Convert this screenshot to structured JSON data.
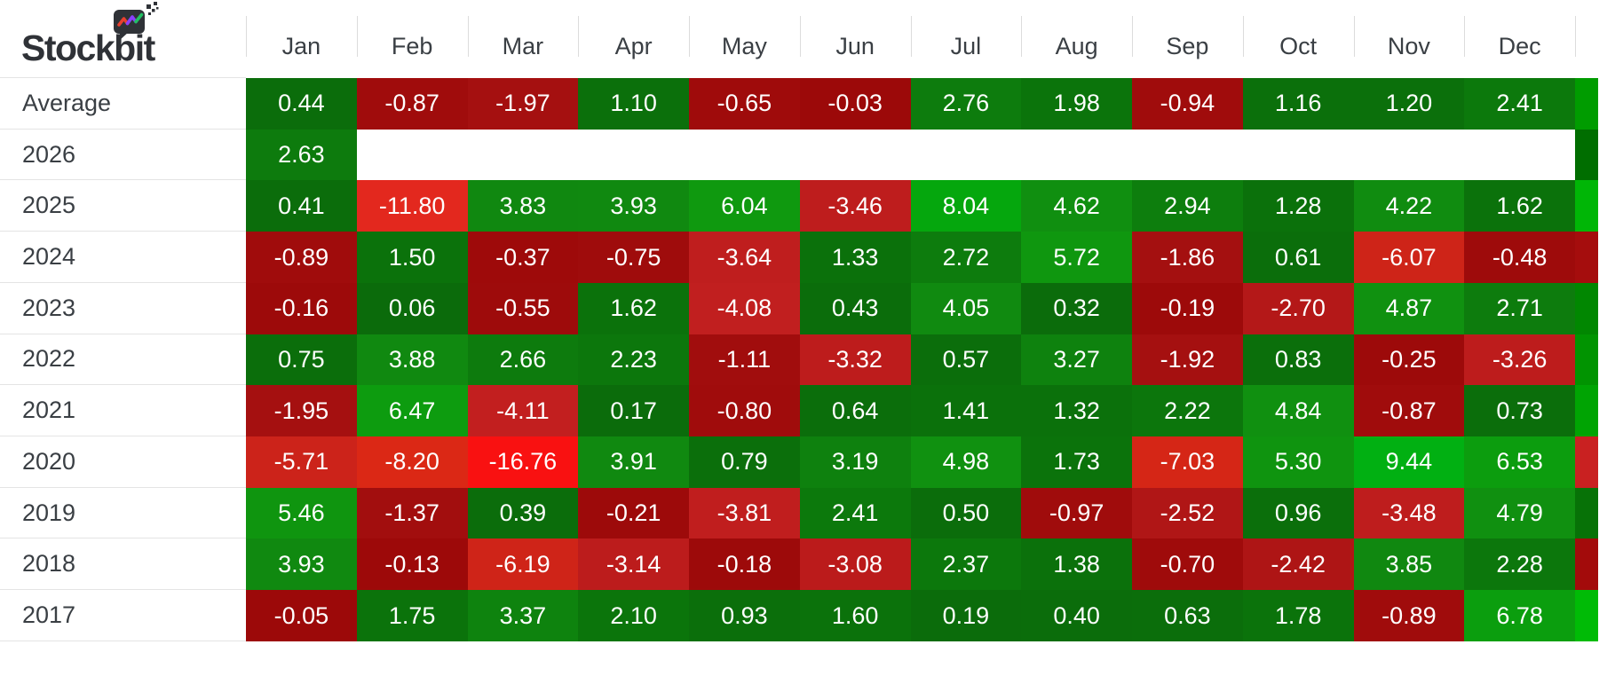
{
  "app": {
    "logo_text": "Stockbit"
  },
  "colors": {
    "background": "#FFFFFF",
    "header_text": "#3A3F44",
    "row_label_text": "#3A3F44",
    "cell_text": "#FFFFFF",
    "divider": "#DCDCDC",
    "row_border": "#E4E4E4",
    "logo_text": "#2F3237",
    "logo_zigzag_red": "#E8402F",
    "logo_zigzag_purple": "#8A3FFC",
    "logo_zigzag_green": "#21C063"
  },
  "chart_data": {
    "type": "heatmap",
    "title": "",
    "x_categories": [
      "Jan",
      "Feb",
      "Mar",
      "Apr",
      "May",
      "Jun",
      "Jul",
      "Aug",
      "Sep",
      "Oct",
      "Nov",
      "Dec"
    ],
    "y_categories": [
      "Average",
      "2026",
      "2025",
      "2024",
      "2023",
      "2022",
      "2021",
      "2020",
      "2019",
      "2018",
      "2017"
    ],
    "values": [
      [
        0.44,
        -0.87,
        -1.97,
        1.1,
        -0.65,
        -0.03,
        2.76,
        1.98,
        -0.94,
        1.16,
        1.2,
        2.41
      ],
      [
        2.63,
        null,
        null,
        null,
        null,
        null,
        null,
        null,
        null,
        null,
        null,
        null
      ],
      [
        0.41,
        -11.8,
        3.83,
        3.93,
        6.04,
        -3.46,
        8.04,
        4.62,
        2.94,
        1.28,
        4.22,
        1.62
      ],
      [
        -0.89,
        1.5,
        -0.37,
        -0.75,
        -3.64,
        1.33,
        2.72,
        5.72,
        -1.86,
        0.61,
        -6.07,
        -0.48
      ],
      [
        -0.16,
        0.06,
        -0.55,
        1.62,
        -4.08,
        0.43,
        4.05,
        0.32,
        -0.19,
        -2.7,
        4.87,
        2.71
      ],
      [
        0.75,
        3.88,
        2.66,
        2.23,
        -1.11,
        -3.32,
        0.57,
        3.27,
        -1.92,
        0.83,
        -0.25,
        -3.26
      ],
      [
        -1.95,
        6.47,
        -4.11,
        0.17,
        -0.8,
        0.64,
        1.41,
        1.32,
        2.22,
        4.84,
        -0.87,
        0.73
      ],
      [
        -5.71,
        -8.2,
        -16.76,
        3.91,
        0.79,
        3.19,
        4.98,
        1.73,
        -7.03,
        5.3,
        9.44,
        6.53
      ],
      [
        5.46,
        -1.37,
        0.39,
        -0.21,
        -3.81,
        2.41,
        0.5,
        -0.97,
        -2.52,
        0.96,
        -3.48,
        4.79
      ],
      [
        3.93,
        -0.13,
        -6.19,
        -3.14,
        -0.18,
        -3.08,
        2.37,
        1.38,
        -0.7,
        -2.42,
        3.85,
        2.28
      ],
      [
        -0.05,
        1.75,
        3.37,
        2.1,
        0.93,
        1.6,
        0.19,
        0.4,
        0.63,
        1.78,
        -0.89,
        6.78
      ]
    ],
    "value_decimals": 2,
    "grid": false,
    "legend": "none",
    "color_scale": {
      "positive_stops": [
        [
          0,
          "#0B6B0B"
        ],
        [
          2,
          "#0B740B"
        ],
        [
          4,
          "#108A10"
        ],
        [
          6,
          "#0F990F"
        ],
        [
          8,
          "#05A70D"
        ],
        [
          10,
          "#00B414"
        ]
      ],
      "negative_stops": [
        [
          0,
          "#9C0909"
        ],
        [
          2,
          "#A51010"
        ],
        [
          3,
          "#BB1B1B"
        ],
        [
          4.5,
          "#C42121"
        ],
        [
          6,
          "#CE2418"
        ],
        [
          8,
          "#DB2814"
        ],
        [
          12,
          "#E3281E"
        ],
        [
          17,
          "#FA1010"
        ]
      ]
    },
    "partial_next_column_colors": [
      "#009C00",
      "#006E00",
      "#00B606",
      "#A50D0D",
      "#018701",
      "#019401",
      "#00A403",
      "#C92121",
      "#077207",
      "#A30B0B",
      "#00BB06"
    ]
  }
}
